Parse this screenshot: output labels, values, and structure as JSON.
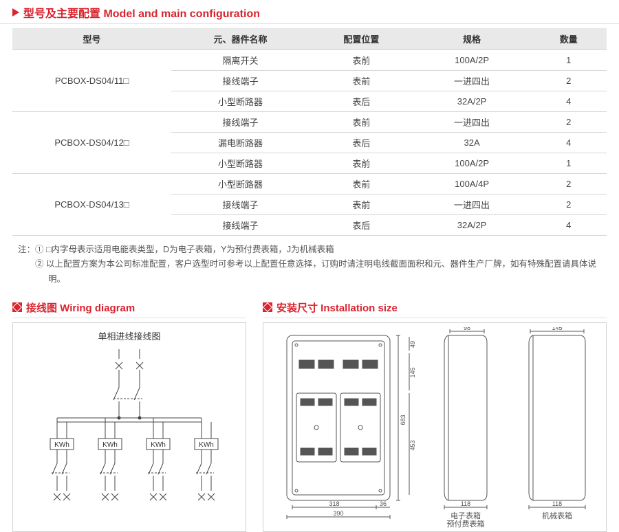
{
  "sections": {
    "config_title": "型号及主要配置 Model and main configuration",
    "wiring_title": "接线图 Wiring diagram",
    "install_title": "安装尺寸 Installation size"
  },
  "table": {
    "headers": [
      "型号",
      "元、器件名称",
      "配置位置",
      "规格",
      "数量"
    ],
    "groups": [
      {
        "model": "PCBOX-DS04/11□",
        "rows": [
          [
            "隔离开关",
            "表前",
            "100A/2P",
            "1"
          ],
          [
            "接线端子",
            "表前",
            "一进四出",
            "2"
          ],
          [
            "小型断路器",
            "表后",
            "32A/2P",
            "4"
          ]
        ]
      },
      {
        "model": "PCBOX-DS04/12□",
        "rows": [
          [
            "接线端子",
            "表前",
            "一进四出",
            "2"
          ],
          [
            "漏电断路器",
            "表后",
            "32A",
            "4"
          ],
          [
            "小型断路器",
            "表前",
            "100A/2P",
            "1"
          ]
        ]
      },
      {
        "model": "PCBOX-DS04/13□",
        "rows": [
          [
            "小型断路器",
            "表前",
            "100A/4P",
            "2"
          ],
          [
            "接线端子",
            "表前",
            "一进四出",
            "2"
          ],
          [
            "接线端子",
            "表后",
            "32A/2P",
            "4"
          ]
        ]
      }
    ]
  },
  "notes": {
    "prefix": "注：",
    "lines": [
      "① □内字母表示适用电能表类型，D为电子表箱，Y为预付费表箱，J为机械表箱",
      "② 以上配置方案为本公司标准配置，客户选型时可参考以上配置任意选择，订购时请注明电线截面面积和元、器件生产厂牌，如有特殊配置请具体说明。"
    ]
  },
  "wiring": {
    "title": "单相进线接线图",
    "meter_label": "KWh",
    "style": {
      "stroke": "#444444",
      "text_color": "#333333",
      "title_fontsize": 13,
      "label_fontsize": 10
    }
  },
  "install": {
    "front": {
      "dims": {
        "w_inner": "318",
        "w_outer": "390",
        "margin_r": "36",
        "h_total": "683",
        "h_mid": "453",
        "h_top": "145",
        "h_cap": "49"
      }
    },
    "side1": {
      "top_w": "98",
      "bot_w": "118",
      "caption1": "电子表箱",
      "caption2": "预付费表箱"
    },
    "side2": {
      "top_w": "145",
      "bot_w": "118",
      "caption": "机械表箱"
    },
    "style": {
      "stroke": "#555555",
      "dim_fontsize": 9,
      "caption_fontsize": 11
    }
  },
  "colors": {
    "brand": "#d9232e",
    "border": "#d0d0d0",
    "th_bg": "#e9e9e9"
  }
}
